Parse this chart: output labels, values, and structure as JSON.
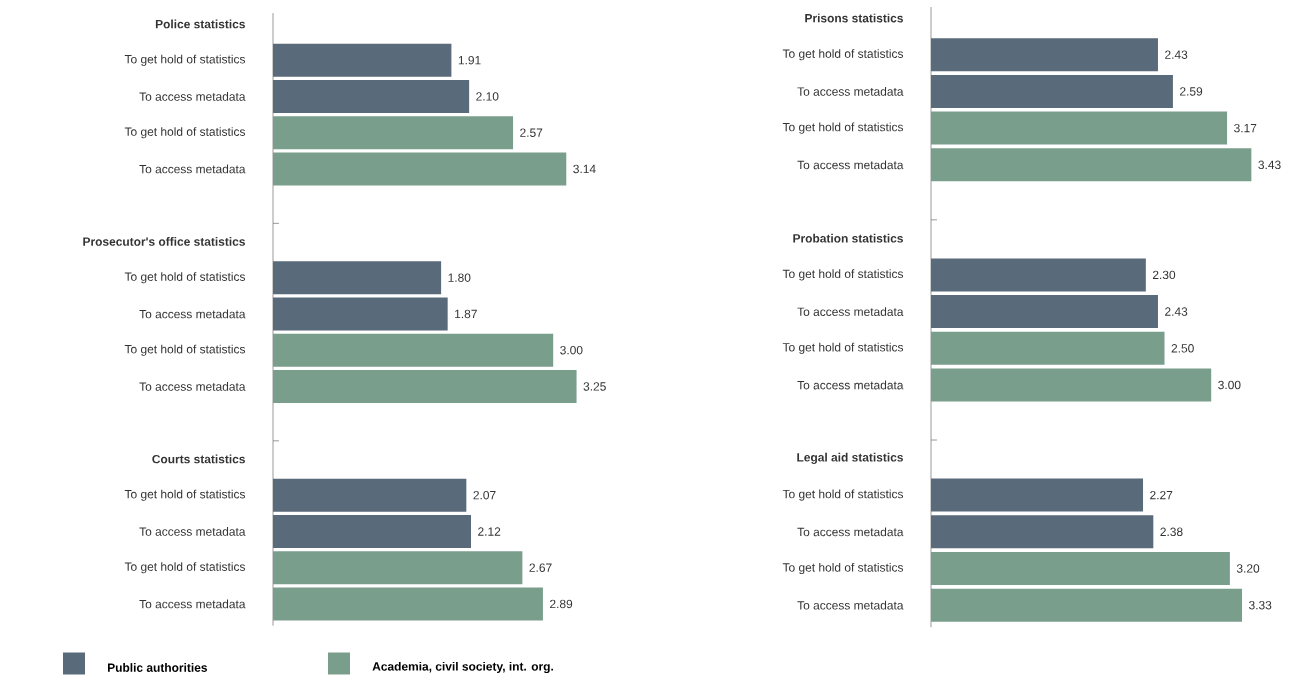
{
  "chart_data": [
    {
      "type": "bar",
      "orientation": "horizontal",
      "categories": [
        "Police statistics",
        "To get hold of statistics",
        "To access metadata",
        "To get hold of statistics",
        "To access metadata",
        "Prosecutor's office statistics",
        "To get hold of statistics",
        "To access metadata",
        "To get hold of statistics",
        "To access metadata",
        "Courts statistics",
        "To get hold of statistics",
        "To access metadata",
        "To get hold of statistics",
        "To access metadata"
      ],
      "series": [
        {
          "name": "Public authorities",
          "color": "#596a7a",
          "values": [
            null,
            1.91,
            2.1,
            null,
            null,
            null,
            1.8,
            1.87,
            null,
            null,
            null,
            2.07,
            2.12,
            null,
            null
          ],
          "value_labels": [
            null,
            "1.91",
            "2.10",
            null,
            null,
            null,
            "1.80",
            "1.87",
            null,
            null,
            null,
            "2.07",
            "2.12",
            null,
            null
          ]
        },
        {
          "name": "Academia, civil society, int. org.",
          "color": "#7a9e8c",
          "values": [
            null,
            null,
            null,
            2.57,
            3.14,
            null,
            null,
            null,
            3.0,
            3.25,
            null,
            null,
            null,
            2.67,
            2.89
          ],
          "value_labels": [
            null,
            null,
            null,
            "2.57",
            "3.14",
            null,
            null,
            null,
            "3.00",
            "3.25",
            null,
            null,
            null,
            "2.67",
            "2.89"
          ]
        }
      ],
      "tick_labels": "y",
      "legend": "bottom"
    },
    {
      "type": "bar",
      "orientation": "horizontal",
      "categories": [
        "Prisons statistics",
        "To get hold of statistics",
        "To access metadata",
        "To get hold of statistics",
        "To access metadata",
        "Probation statistics",
        "To get hold of statistics",
        "To access metadata",
        "To get hold of statistics",
        "To access metadata",
        "Legal aid statistics",
        "To get hold of statistics",
        "To access metadata",
        "To get hold of statistics",
        "To access metadata"
      ],
      "series": [
        {
          "color": "#596a7a",
          "values": [
            null,
            2.43,
            2.59,
            null,
            null,
            null,
            2.3,
            2.43,
            null,
            null,
            null,
            2.27,
            2.38,
            null,
            null
          ],
          "value_labels": [
            null,
            "2.43",
            "2.59",
            null,
            null,
            null,
            "2.30",
            "2.43",
            null,
            null,
            null,
            "2.27",
            "2.38",
            null,
            null
          ]
        },
        {
          "color": "#7a9e8c",
          "values": [
            null,
            null,
            null,
            3.17,
            3.43,
            null,
            null,
            null,
            2.5,
            3.0,
            null,
            null,
            null,
            3.2,
            3.33
          ],
          "value_labels": [
            null,
            null,
            null,
            "3.17",
            "3.43",
            null,
            null,
            null,
            "2.50",
            "3.00",
            null,
            null,
            null,
            "3.20",
            "3.33"
          ]
        }
      ],
      "tick_labels": "y"
    }
  ]
}
